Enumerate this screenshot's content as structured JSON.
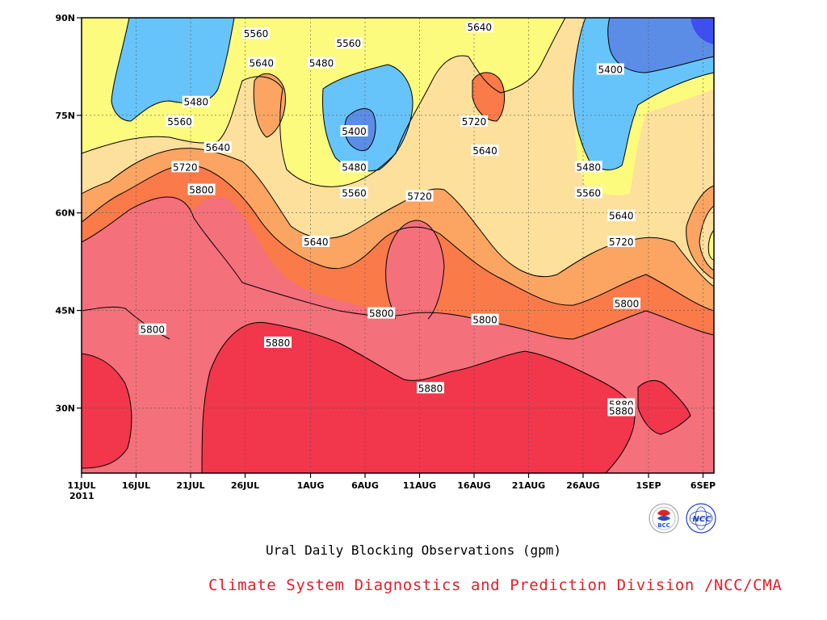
{
  "chart_data": {
    "type": "heatmap",
    "title": "Ural Daily Blocking Observations (gpm)",
    "subtitle": "",
    "x_ticks": [
      "11JUL",
      "16JUL",
      "21JUL",
      "26JUL",
      "1AUG",
      "6AUG",
      "11AUG",
      "16AUG",
      "21AUG",
      "26AUG",
      "1SEP",
      "6SEP"
    ],
    "x_year_label": "2011",
    "y_ticks": [
      "90N",
      "75N",
      "60N",
      "45N",
      "30N"
    ],
    "y_tick_values": [
      90,
      75,
      60,
      45,
      30
    ],
    "x_range": [
      "11JUL",
      "7SEP"
    ],
    "y_range": [
      20,
      90
    ],
    "contour_levels": [
      5400,
      5480,
      5560,
      5640,
      5720,
      5800,
      5880
    ],
    "contour_labels": [
      {
        "text": "5560",
        "day": 16,
        "lat": 87.5
      },
      {
        "text": "5640",
        "day": 16.5,
        "lat": 83
      },
      {
        "text": "5560",
        "day": 24.5,
        "lat": 86
      },
      {
        "text": "5480",
        "day": 22,
        "lat": 83
      },
      {
        "text": "5640",
        "day": 36.5,
        "lat": 88.5
      },
      {
        "text": "5400",
        "day": 48.5,
        "lat": 82
      },
      {
        "text": "5480",
        "day": 10.5,
        "lat": 77
      },
      {
        "text": "5560",
        "day": 9,
        "lat": 74
      },
      {
        "text": "5720",
        "day": 36,
        "lat": 74
      },
      {
        "text": "5400",
        "day": 25,
        "lat": 72.5
      },
      {
        "text": "5640",
        "day": 12.5,
        "lat": 70
      },
      {
        "text": "5640",
        "day": 37,
        "lat": 69.5
      },
      {
        "text": "5720",
        "day": 9.5,
        "lat": 67
      },
      {
        "text": "5480",
        "day": 25,
        "lat": 67
      },
      {
        "text": "5480",
        "day": 46.5,
        "lat": 67
      },
      {
        "text": "5800",
        "day": 11,
        "lat": 63.5
      },
      {
        "text": "5560",
        "day": 25,
        "lat": 63
      },
      {
        "text": "5560",
        "day": 46.5,
        "lat": 63
      },
      {
        "text": "5720",
        "day": 31,
        "lat": 62.5
      },
      {
        "text": "5640",
        "day": 49.5,
        "lat": 59.5
      },
      {
        "text": "5640",
        "day": 21.5,
        "lat": 55.5
      },
      {
        "text": "5720",
        "day": 49.5,
        "lat": 55.5
      },
      {
        "text": "5800",
        "day": 50,
        "lat": 46
      },
      {
        "text": "5800",
        "day": 27.5,
        "lat": 44.5
      },
      {
        "text": "5800",
        "day": 6.5,
        "lat": 42
      },
      {
        "text": "5800",
        "day": 37,
        "lat": 43.5
      },
      {
        "text": "5880",
        "day": 18,
        "lat": 40
      },
      {
        "text": "5880",
        "day": 32,
        "lat": 33
      },
      {
        "text": "5880",
        "day": 49.5,
        "lat": 30.5
      },
      {
        "text": "5880",
        "day": 49.5,
        "lat": 29.5
      }
    ],
    "bands": [
      {
        "range": "<5400",
        "color": "#3d4ff0"
      },
      {
        "range": "5400-5480",
        "color": "#5b8de6"
      },
      {
        "range": "5480-5560",
        "color": "#66c4fa"
      },
      {
        "range": "5560-5640",
        "color": "#fdfb7e"
      },
      {
        "range": "5640-5720",
        "color": "#fde09c"
      },
      {
        "range": "5720-5800",
        "color": "#fca462"
      },
      {
        "range": "5800-5880",
        "color": "#fb7a4a"
      },
      {
        "range": "5880-5960",
        "color": "#f4707a"
      },
      {
        "range": ">5960",
        "color": "#f2364b"
      }
    ],
    "grid": true,
    "legend": "none"
  },
  "caption": "Ural Daily Blocking Observations (gpm)",
  "credit": "Climate System Diagnostics and Prediction Division /NCC/CMA",
  "logos": [
    {
      "name": "bcc-logo",
      "text": "BCC"
    },
    {
      "name": "ncc-logo",
      "text": "NCC"
    }
  ]
}
